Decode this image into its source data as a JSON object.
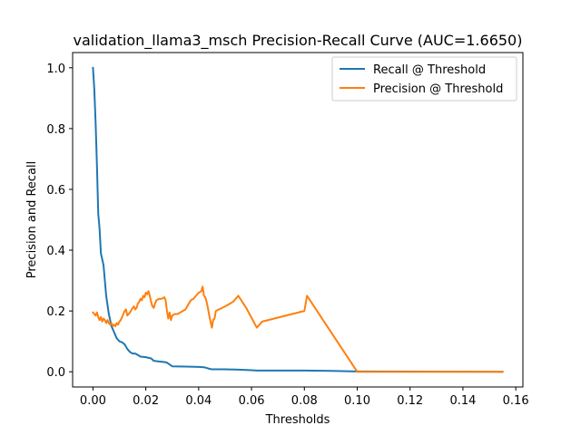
{
  "chart_data": {
    "type": "line",
    "title": "validation_llama3_msch Precision-Recall Curve (AUC=1.6650)",
    "xlabel": "Thresholds",
    "ylabel": "Precision and Recall",
    "xlim": [
      -0.0077,
      0.1627
    ],
    "ylim": [
      -0.05,
      1.05
    ],
    "xticks": [
      0.0,
      0.02,
      0.04,
      0.06,
      0.08,
      0.1,
      0.12,
      0.14,
      0.16
    ],
    "xtick_labels": [
      "0.00",
      "0.02",
      "0.04",
      "0.06",
      "0.08",
      "0.10",
      "0.12",
      "0.14",
      "0.16"
    ],
    "yticks": [
      0.0,
      0.2,
      0.4,
      0.6,
      0.8,
      1.0
    ],
    "ytick_labels": [
      "0.0",
      "0.2",
      "0.4",
      "0.6",
      "0.8",
      "1.0"
    ],
    "grid": false,
    "legend_position": "top-right",
    "series": [
      {
        "name": "Recall @ Threshold",
        "color": "#1f77b4",
        "points": [
          [
            0.0,
            1.0
          ],
          [
            0.0005,
            0.93
          ],
          [
            0.001,
            0.82
          ],
          [
            0.0015,
            0.68
          ],
          [
            0.002,
            0.52
          ],
          [
            0.0025,
            0.47
          ],
          [
            0.003,
            0.39
          ],
          [
            0.0035,
            0.37
          ],
          [
            0.004,
            0.35
          ],
          [
            0.0045,
            0.3
          ],
          [
            0.005,
            0.25
          ],
          [
            0.0055,
            0.22
          ],
          [
            0.006,
            0.19
          ],
          [
            0.0065,
            0.17
          ],
          [
            0.007,
            0.15
          ],
          [
            0.0075,
            0.14
          ],
          [
            0.008,
            0.13
          ],
          [
            0.0085,
            0.12
          ],
          [
            0.009,
            0.11
          ],
          [
            0.0095,
            0.105
          ],
          [
            0.01,
            0.1
          ],
          [
            0.011,
            0.097
          ],
          [
            0.012,
            0.09
          ],
          [
            0.013,
            0.075
          ],
          [
            0.014,
            0.065
          ],
          [
            0.015,
            0.06
          ],
          [
            0.016,
            0.06
          ],
          [
            0.017,
            0.055
          ],
          [
            0.018,
            0.05
          ],
          [
            0.02,
            0.048
          ],
          [
            0.022,
            0.044
          ],
          [
            0.023,
            0.036
          ],
          [
            0.025,
            0.034
          ],
          [
            0.027,
            0.032
          ],
          [
            0.028,
            0.03
          ],
          [
            0.03,
            0.018
          ],
          [
            0.035,
            0.017
          ],
          [
            0.04,
            0.016
          ],
          [
            0.042,
            0.015
          ],
          [
            0.044,
            0.01
          ],
          [
            0.045,
            0.008
          ],
          [
            0.05,
            0.008
          ],
          [
            0.055,
            0.007
          ],
          [
            0.06,
            0.005
          ],
          [
            0.062,
            0.004
          ],
          [
            0.07,
            0.004
          ],
          [
            0.08,
            0.004
          ],
          [
            0.09,
            0.003
          ],
          [
            0.1,
            0.001
          ],
          [
            0.155,
            0.0
          ]
        ]
      },
      {
        "name": "Precision @ Threshold",
        "color": "#ff7f0e",
        "points": [
          [
            0.0,
            0.195
          ],
          [
            0.0005,
            0.19
          ],
          [
            0.001,
            0.185
          ],
          [
            0.0015,
            0.195
          ],
          [
            0.002,
            0.18
          ],
          [
            0.0025,
            0.17
          ],
          [
            0.003,
            0.18
          ],
          [
            0.0035,
            0.165
          ],
          [
            0.004,
            0.175
          ],
          [
            0.0045,
            0.17
          ],
          [
            0.005,
            0.16
          ],
          [
            0.0055,
            0.17
          ],
          [
            0.006,
            0.16
          ],
          [
            0.0065,
            0.155
          ],
          [
            0.007,
            0.16
          ],
          [
            0.0075,
            0.15
          ],
          [
            0.008,
            0.155
          ],
          [
            0.0085,
            0.15
          ],
          [
            0.009,
            0.16
          ],
          [
            0.0095,
            0.155
          ],
          [
            0.01,
            0.165
          ],
          [
            0.0105,
            0.17
          ],
          [
            0.011,
            0.18
          ],
          [
            0.0115,
            0.19
          ],
          [
            0.012,
            0.2
          ],
          [
            0.0125,
            0.205
          ],
          [
            0.013,
            0.185
          ],
          [
            0.0135,
            0.19
          ],
          [
            0.014,
            0.195
          ],
          [
            0.015,
            0.21
          ],
          [
            0.0155,
            0.215
          ],
          [
            0.016,
            0.205
          ],
          [
            0.0165,
            0.21
          ],
          [
            0.017,
            0.225
          ],
          [
            0.0175,
            0.23
          ],
          [
            0.018,
            0.24
          ],
          [
            0.0185,
            0.235
          ],
          [
            0.019,
            0.25
          ],
          [
            0.0195,
            0.245
          ],
          [
            0.02,
            0.26
          ],
          [
            0.0205,
            0.255
          ],
          [
            0.021,
            0.265
          ],
          [
            0.0215,
            0.25
          ],
          [
            0.022,
            0.23
          ],
          [
            0.0225,
            0.215
          ],
          [
            0.023,
            0.21
          ],
          [
            0.0235,
            0.225
          ],
          [
            0.024,
            0.235
          ],
          [
            0.025,
            0.24
          ],
          [
            0.026,
            0.24
          ],
          [
            0.027,
            0.245
          ],
          [
            0.0275,
            0.235
          ],
          [
            0.028,
            0.2
          ],
          [
            0.0285,
            0.175
          ],
          [
            0.029,
            0.195
          ],
          [
            0.0295,
            0.17
          ],
          [
            0.03,
            0.185
          ],
          [
            0.031,
            0.19
          ],
          [
            0.032,
            0.19
          ],
          [
            0.033,
            0.195
          ],
          [
            0.034,
            0.2
          ],
          [
            0.035,
            0.205
          ],
          [
            0.036,
            0.22
          ],
          [
            0.037,
            0.235
          ],
          [
            0.038,
            0.24
          ],
          [
            0.039,
            0.25
          ],
          [
            0.04,
            0.26
          ],
          [
            0.041,
            0.265
          ],
          [
            0.0415,
            0.28
          ],
          [
            0.042,
            0.25
          ],
          [
            0.0425,
            0.245
          ],
          [
            0.043,
            0.23
          ],
          [
            0.0435,
            0.21
          ],
          [
            0.044,
            0.185
          ],
          [
            0.0445,
            0.165
          ],
          [
            0.045,
            0.145
          ],
          [
            0.0455,
            0.17
          ],
          [
            0.046,
            0.175
          ],
          [
            0.0465,
            0.2
          ],
          [
            0.05,
            0.215
          ],
          [
            0.053,
            0.23
          ],
          [
            0.055,
            0.25
          ],
          [
            0.058,
            0.21
          ],
          [
            0.062,
            0.145
          ],
          [
            0.064,
            0.165
          ],
          [
            0.08,
            0.2
          ],
          [
            0.081,
            0.25
          ],
          [
            0.1,
            0.0
          ],
          [
            0.155,
            0.0
          ]
        ]
      }
    ]
  }
}
